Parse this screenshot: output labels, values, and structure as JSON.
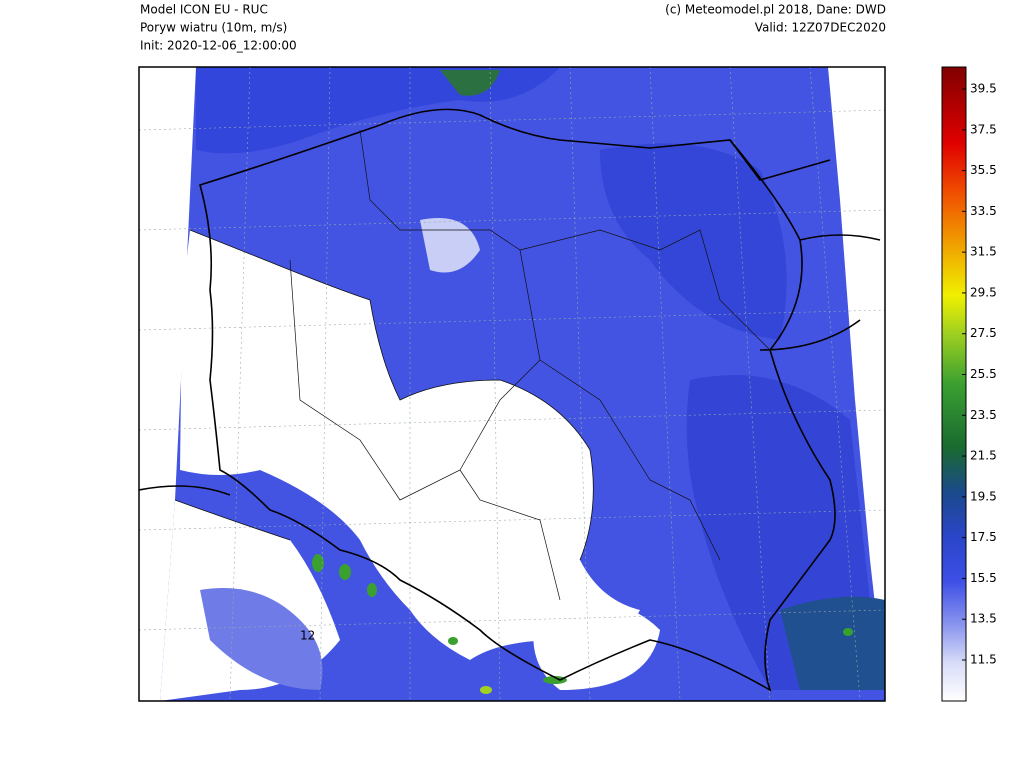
{
  "header": {
    "left": [
      "Model ICON EU - RUC",
      "Poryw wiatru (10m, m/s)",
      "Init: 2020-12-06_12:00:00"
    ],
    "right": [
      "(c) Meteomodel.pl 2018, Dane: DWD",
      "Valid: 12Z07DEC2020"
    ]
  },
  "map": {
    "contour_label": "12"
  },
  "colorbar": {
    "ticks": [
      11.5,
      13.5,
      15.5,
      17.5,
      19.5,
      21.5,
      23.5,
      25.5,
      27.5,
      29.5,
      31.5,
      33.5,
      35.5,
      37.5,
      39.5
    ]
  }
}
